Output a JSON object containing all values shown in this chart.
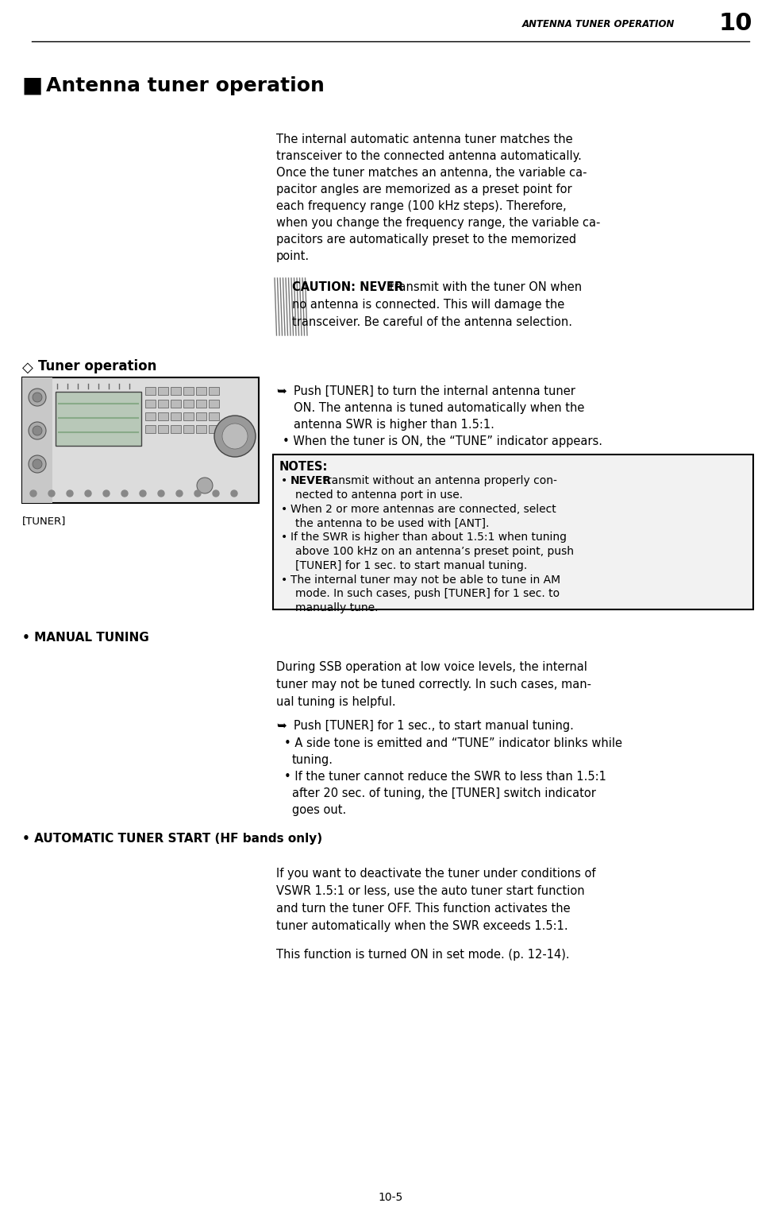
{
  "page_header_text": "ANTENNA TUNER OPERATION",
  "page_header_num": "10",
  "page_footer": "10-5",
  "section_title": "Antenna tuner operation",
  "intro_lines": [
    "The internal automatic antenna tuner matches the",
    "transceiver to the connected antenna automatically.",
    "Once the tuner matches an antenna, the variable ca-",
    "pacitor angles are memorized as a preset point for",
    "each frequency range (100 kHz steps). Therefore,",
    "when you change the frequency range, the variable ca-",
    "pacitors are automatically preset to the memorized",
    "point."
  ],
  "caution_bold": "CAUTION: NEVER",
  "caution_rest_line1": " transmit with the tuner ON when",
  "caution_line2": "no antenna is connected. This will damage the",
  "caution_line3": "transceiver. Be careful of the antenna selection.",
  "tuner_op_title": "Tuner operation",
  "tuner_label": "[TUNER]",
  "tuner_arrow_lines": [
    "Push [TUNER] to turn the internal antenna tuner",
    "ON. The antenna is tuned automatically when the",
    "antenna SWR is higher than 1.5:1."
  ],
  "tuner_bullet1_pre": "When the tuner is ON, the “TUNE” indicator appears.",
  "notes_title": "NOTES:",
  "notes_items": [
    [
      "NEVER",
      " transmit without an antenna properly con-",
      "nected to antenna port in use."
    ],
    [
      "",
      "When 2 or more antennas are connected, select",
      "the antenna to be used with [ANT]."
    ],
    [
      "",
      "If the SWR is higher than about 1.5:1 when tuning",
      "above 100 kHz on an antenna’s preset point, push",
      "[TUNER] for 1 sec. to start manual tuning."
    ],
    [
      "",
      "The internal tuner may not be able to tune in AM",
      "mode. In such cases, push [TUNER] for 1 sec. to",
      "manually tune."
    ]
  ],
  "manual_tuning_title": "MANUAL TUNING",
  "manual_desc_lines": [
    "During SSB operation at low voice levels, the internal",
    "tuner may not be tuned correctly. In such cases, man-",
    "ual tuning is helpful."
  ],
  "manual_arrow_line": "Push [TUNER] for 1 sec., to start manual tuning.",
  "manual_sub_bullets": [
    "A side tone is emitted and “TUNE” indicator blinks while",
    "tuning.",
    "If the tuner cannot reduce the SWR to less than 1.5:1",
    "after 20 sec. of tuning, the [TUNER] switch indicator",
    "goes out."
  ],
  "auto_title": "AUTOMATIC TUNER START (HF bands only)",
  "auto_desc_lines": [
    "If you want to deactivate the tuner under conditions of",
    "VSWR 1.5:1 or less, use the auto tuner start function",
    "and turn the tuner OFF. This function activates the",
    "tuner automatically when the SWR exceeds 1.5:1."
  ],
  "auto_extra_line": "This function is turned ON in set mode. (p. 12-14).",
  "bg_color": "#ffffff"
}
